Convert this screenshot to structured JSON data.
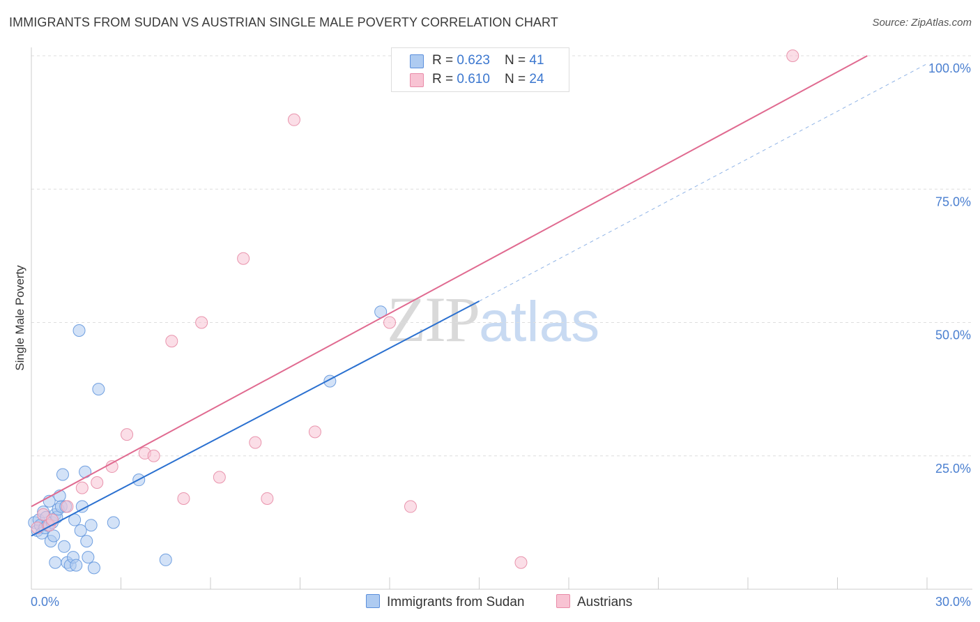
{
  "header": {
    "title": "IMMIGRANTS FROM SUDAN VS AUSTRIAN SINGLE MALE POVERTY CORRELATION CHART",
    "source": "Source: ZipAtlas.com"
  },
  "watermark": {
    "zip": "ZIP",
    "atlas": "atlas"
  },
  "legend": {
    "rows": [
      {
        "r_label": "R = ",
        "r_value": "0.623",
        "n_label": "N = ",
        "n_value": "41",
        "color": "#aecbf1",
        "border": "#5b8fdc"
      },
      {
        "r_label": "R = ",
        "r_value": "0.610",
        "n_label": "N = ",
        "n_value": "24",
        "color": "#f8c3d3",
        "border": "#e98aa8"
      }
    ]
  },
  "bottom_legend": {
    "series1": "Immigrants from Sudan",
    "series2": "Austrians"
  },
  "colors": {
    "blue_fill": "#aecbf1",
    "blue_stroke": "#6f9fe0",
    "blue_line": "#2a70d0",
    "pink_fill": "#f8c3d3",
    "pink_stroke": "#e994ad",
    "pink_line": "#e06a90",
    "tick_label": "#4a7fd0",
    "grid": "#dedede"
  },
  "chart_data": {
    "type": "scatter",
    "title": "IMMIGRANTS FROM SUDAN VS AUSTRIAN SINGLE MALE POVERTY CORRELATION CHART",
    "xlabel": "",
    "ylabel": "Single Male Poverty",
    "xlim": [
      0,
      30
    ],
    "ylim": [
      0,
      100
    ],
    "x_tick_labels": [
      "0.0%",
      "30.0%"
    ],
    "y_tick_labels": [
      "25.0%",
      "50.0%",
      "75.0%",
      "100.0%"
    ],
    "y_ticks": [
      25,
      50,
      75,
      100
    ],
    "grid": true,
    "series": [
      {
        "name": "Immigrants from Sudan",
        "R": 0.623,
        "N": 41,
        "points": [
          [
            0.1,
            12.5
          ],
          [
            0.2,
            11.0
          ],
          [
            0.25,
            13.0
          ],
          [
            0.3,
            12.0
          ],
          [
            0.35,
            10.5
          ],
          [
            0.4,
            14.5
          ],
          [
            0.45,
            11.5
          ],
          [
            0.5,
            13.5
          ],
          [
            0.55,
            12.0
          ],
          [
            0.6,
            16.5
          ],
          [
            0.65,
            9.0
          ],
          [
            0.7,
            12.5
          ],
          [
            0.75,
            10.0
          ],
          [
            0.8,
            14.0
          ],
          [
            0.85,
            13.5
          ],
          [
            0.9,
            15.0
          ],
          [
            0.95,
            17.5
          ],
          [
            1.0,
            15.5
          ],
          [
            1.05,
            21.5
          ],
          [
            1.1,
            8.0
          ],
          [
            1.15,
            15.5
          ],
          [
            1.2,
            5.0
          ],
          [
            1.3,
            4.5
          ],
          [
            1.4,
            6.0
          ],
          [
            1.45,
            13.0
          ],
          [
            1.5,
            4.5
          ],
          [
            1.6,
            48.5
          ],
          [
            1.65,
            11.0
          ],
          [
            1.7,
            15.5
          ],
          [
            1.8,
            22.0
          ],
          [
            1.85,
            9.0
          ],
          [
            1.9,
            6.0
          ],
          [
            2.0,
            12.0
          ],
          [
            2.1,
            4.0
          ],
          [
            2.25,
            37.5
          ],
          [
            2.75,
            12.5
          ],
          [
            3.6,
            20.5
          ],
          [
            4.5,
            5.5
          ],
          [
            10.0,
            39.0
          ],
          [
            11.7,
            52.0
          ],
          [
            0.8,
            5.0
          ]
        ],
        "trend": {
          "x0": 0.0,
          "y0": 10.0,
          "x1": 15.0,
          "y1": 54.0,
          "dashed_to_x": 30.0,
          "dashed_to_y": 98.5
        }
      },
      {
        "name": "Austrians",
        "R": 0.61,
        "N": 24,
        "points": [
          [
            0.2,
            11.5
          ],
          [
            0.4,
            14.0
          ],
          [
            0.6,
            12.0
          ],
          [
            0.7,
            13.0
          ],
          [
            1.2,
            15.5
          ],
          [
            1.7,
            19.0
          ],
          [
            2.2,
            20.0
          ],
          [
            2.7,
            23.0
          ],
          [
            3.2,
            29.0
          ],
          [
            3.8,
            25.5
          ],
          [
            4.1,
            25.0
          ],
          [
            4.7,
            46.5
          ],
          [
            5.1,
            17.0
          ],
          [
            5.7,
            50.0
          ],
          [
            6.3,
            21.0
          ],
          [
            7.1,
            62.0
          ],
          [
            7.5,
            27.5
          ],
          [
            7.9,
            17.0
          ],
          [
            8.8,
            88.0
          ],
          [
            9.5,
            29.5
          ],
          [
            12.0,
            50.0
          ],
          [
            12.7,
            15.5
          ],
          [
            16.4,
            5.0
          ],
          [
            25.5,
            100.0
          ]
        ],
        "trend": {
          "x0": 0.0,
          "y0": 15.5,
          "x1": 28.0,
          "y1": 100.0
        }
      }
    ]
  }
}
